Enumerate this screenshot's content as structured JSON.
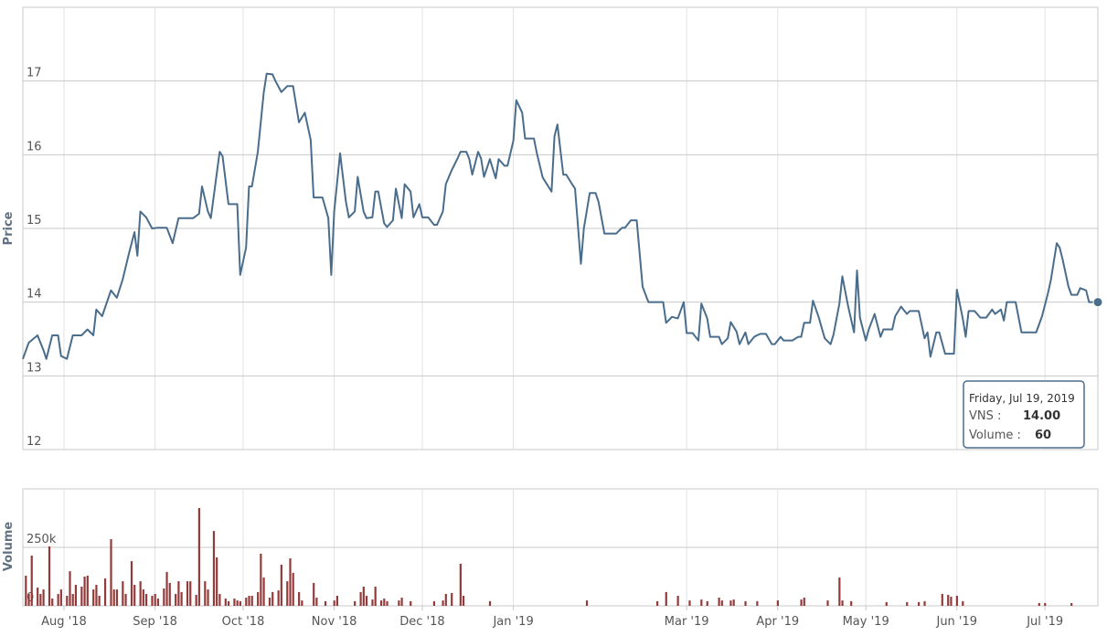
{
  "chart_data": [
    {
      "type": "line",
      "y_label": "Price",
      "color": "#4a6d8c",
      "grid": true,
      "xlim": [
        "2018-07-18",
        "2019-07-19"
      ],
      "ylim": [
        12,
        18
      ],
      "yticks": [
        12,
        13,
        14,
        15,
        16,
        17
      ],
      "x": [
        "2018-07-18",
        "2018-07-20",
        "2018-07-23",
        "2018-07-25",
        "2018-07-26",
        "2018-07-28",
        "2018-07-30",
        "2018-07-31",
        "2018-08-02",
        "2018-08-04",
        "2018-08-07",
        "2018-08-09",
        "2018-08-11",
        "2018-08-12",
        "2018-08-14",
        "2018-08-17",
        "2018-08-19",
        "2018-08-21",
        "2018-08-23",
        "2018-08-25",
        "2018-08-26",
        "2018-08-27",
        "2018-08-29",
        "2018-08-31",
        "2018-09-02",
        "2018-09-05",
        "2018-09-07",
        "2018-09-09",
        "2018-09-14",
        "2018-09-16",
        "2018-09-17",
        "2018-09-19",
        "2018-09-20",
        "2018-09-23",
        "2018-09-24",
        "2018-09-26",
        "2018-09-29",
        "2018-09-30",
        "2018-10-02",
        "2018-10-03",
        "2018-10-04",
        "2018-10-06",
        "2018-10-08",
        "2018-10-09",
        "2018-10-11",
        "2018-10-12",
        "2018-10-14",
        "2018-10-16",
        "2018-10-18",
        "2018-10-20",
        "2018-10-22",
        "2018-10-24",
        "2018-10-25",
        "2018-10-28",
        "2018-10-30",
        "2018-10-31",
        "2018-11-01",
        "2018-11-03",
        "2018-11-05",
        "2018-11-06",
        "2018-11-08",
        "2018-11-09",
        "2018-11-11",
        "2018-11-12",
        "2018-11-14",
        "2018-11-15",
        "2018-11-16",
        "2018-11-18",
        "2018-11-19",
        "2018-11-21",
        "2018-11-22",
        "2018-11-24",
        "2018-11-25",
        "2018-11-27",
        "2018-11-28",
        "2018-11-30",
        "2018-12-01",
        "2018-12-03",
        "2018-12-05",
        "2018-12-06",
        "2018-12-08",
        "2018-12-09",
        "2018-12-11",
        "2018-12-13",
        "2018-12-14",
        "2018-12-16",
        "2018-12-17",
        "2018-12-18",
        "2018-12-20",
        "2018-12-21",
        "2018-12-22",
        "2018-12-24",
        "2018-12-26",
        "2018-12-27",
        "2018-12-29",
        "2018-12-30",
        "2019-01-01",
        "2019-01-02",
        "2019-01-04",
        "2019-01-05",
        "2019-01-08",
        "2019-01-09",
        "2019-01-11",
        "2019-01-14",
        "2019-01-15",
        "2019-01-16",
        "2019-01-18",
        "2019-01-19",
        "2019-01-21",
        "2019-01-22",
        "2019-01-24",
        "2019-01-25",
        "2019-01-27",
        "2019-01-29",
        "2019-01-30",
        "2019-02-01",
        "2019-02-05",
        "2019-02-07",
        "2019-02-08",
        "2019-02-10",
        "2019-02-12",
        "2019-02-14",
        "2019-02-16",
        "2019-02-21",
        "2019-02-22",
        "2019-02-24",
        "2019-02-26",
        "2019-02-28",
        "2019-03-01",
        "2019-03-03",
        "2019-03-05",
        "2019-03-06",
        "2019-03-08",
        "2019-03-09",
        "2019-03-12",
        "2019-03-13",
        "2019-03-15",
        "2019-03-16",
        "2019-03-18",
        "2019-03-19",
        "2019-03-21",
        "2019-03-22",
        "2019-03-24",
        "2019-03-26",
        "2019-03-28",
        "2019-03-30",
        "2019-03-31",
        "2019-04-02",
        "2019-04-03",
        "2019-04-06",
        "2019-04-08",
        "2019-04-09",
        "2019-04-10",
        "2019-04-12",
        "2019-04-13",
        "2019-04-15",
        "2019-04-17",
        "2019-04-19",
        "2019-04-20",
        "2019-04-22",
        "2019-04-23",
        "2019-04-25",
        "2019-04-27",
        "2019-04-28",
        "2019-04-29",
        "2019-05-01",
        "2019-05-02",
        "2019-05-04",
        "2019-05-06",
        "2019-05-07",
        "2019-05-10",
        "2019-05-11",
        "2019-05-13",
        "2019-05-15",
        "2019-05-16",
        "2019-05-19",
        "2019-05-21",
        "2019-05-22",
        "2019-05-23",
        "2019-05-25",
        "2019-05-26",
        "2019-05-28",
        "2019-05-31",
        "2019-06-01",
        "2019-06-03",
        "2019-06-04",
        "2019-06-05",
        "2019-06-07",
        "2019-06-09",
        "2019-06-11",
        "2019-06-13",
        "2019-06-14",
        "2019-06-16",
        "2019-06-17",
        "2019-06-18",
        "2019-06-21",
        "2019-06-23",
        "2019-06-28",
        "2019-06-30",
        "2019-07-02",
        "2019-07-03",
        "2019-07-05",
        "2019-07-06",
        "2019-07-07",
        "2019-07-09",
        "2019-07-10",
        "2019-07-12",
        "2019-07-13",
        "2019-07-15",
        "2019-07-16",
        "2019-07-19"
      ],
      "values": [
        13.23,
        13.45,
        13.55,
        13.35,
        13.23,
        13.55,
        13.55,
        13.27,
        13.23,
        13.55,
        13.55,
        13.63,
        13.55,
        13.9,
        13.81,
        14.16,
        14.06,
        14.31,
        14.64,
        14.95,
        14.63,
        15.23,
        15.15,
        15.0,
        15.01,
        15.01,
        14.8,
        15.14,
        15.14,
        15.2,
        15.57,
        15.23,
        15.14,
        16.04,
        15.98,
        15.33,
        15.33,
        14.37,
        14.74,
        15.57,
        15.57,
        16.04,
        16.84,
        17.1,
        17.09,
        17.0,
        16.85,
        16.93,
        16.93,
        16.44,
        16.57,
        16.2,
        15.42,
        15.42,
        15.14,
        14.37,
        15.23,
        16.02,
        15.36,
        15.15,
        15.23,
        15.7,
        15.23,
        15.14,
        15.15,
        15.5,
        15.5,
        15.07,
        15.02,
        15.11,
        15.54,
        15.14,
        15.6,
        15.5,
        15.15,
        15.33,
        15.15,
        15.15,
        15.05,
        15.05,
        15.23,
        15.6,
        15.79,
        15.95,
        16.04,
        16.04,
        15.94,
        15.73,
        16.04,
        15.95,
        15.7,
        15.94,
        15.68,
        15.94,
        15.85,
        15.85,
        16.19,
        16.74,
        16.57,
        16.22,
        16.22,
        16.02,
        15.69,
        15.5,
        16.25,
        16.41,
        15.73,
        15.73,
        15.6,
        15.54,
        14.52,
        15.0,
        15.48,
        15.48,
        15.36,
        14.93,
        14.93,
        15.01,
        15.01,
        15.11,
        15.11,
        14.21,
        14.0,
        14.0,
        13.72,
        13.8,
        13.78,
        14.0,
        13.58,
        13.58,
        13.48,
        13.98,
        13.78,
        13.53,
        13.53,
        13.43,
        13.51,
        13.73,
        13.6,
        13.43,
        13.59,
        13.43,
        13.53,
        13.57,
        13.57,
        13.43,
        13.43,
        13.53,
        13.48,
        13.48,
        13.53,
        13.53,
        13.72,
        13.72,
        14.02,
        13.79,
        13.51,
        13.43,
        13.56,
        13.98,
        14.35,
        13.94,
        13.59,
        14.43,
        13.79,
        13.48,
        13.63,
        13.84,
        13.53,
        13.63,
        13.63,
        13.81,
        13.94,
        13.84,
        13.88,
        13.88,
        13.51,
        13.59,
        13.26,
        13.59,
        13.59,
        13.3,
        13.3,
        14.17,
        13.78,
        13.53,
        13.88,
        13.88,
        13.79,
        13.79,
        13.9,
        13.84,
        13.9,
        13.75,
        14.0,
        14.0,
        13.59,
        13.59,
        13.81,
        14.12,
        14.3,
        14.8,
        14.74,
        14.58,
        14.21,
        14.1,
        14.1,
        14.19,
        14.16,
        14.0,
        14.0
      ]
    },
    {
      "type": "bar",
      "y_label": "Volume",
      "color": "#933b3b",
      "grid": true,
      "xlim": [
        "2018-07-18",
        "2019-07-19"
      ],
      "ylim": [
        0,
        500000
      ],
      "yticks": [
        0,
        {
          "value": 250000,
          "label": "250k"
        }
      ],
      "xticks": [
        {
          "value": "2018-08-01",
          "label": "Aug '18"
        },
        {
          "value": "2018-09-01",
          "label": "Sep '18"
        },
        {
          "value": "2018-10-01",
          "label": "Oct '18"
        },
        {
          "value": "2018-11-01",
          "label": "Nov '18"
        },
        {
          "value": "2018-12-01",
          "label": "Dec '18"
        },
        {
          "value": "2019-01-01",
          "label": "Jan '19"
        },
        {
          "value": "2019-03-01",
          "label": "Mar '19"
        },
        {
          "value": "2019-04-01",
          "label": "Apr '19"
        },
        {
          "value": "2019-05-01",
          "label": "May '19"
        },
        {
          "value": "2019-06-01",
          "label": "Jun '19"
        },
        {
          "value": "2019-07-01",
          "label": "Jul '19"
        }
      ],
      "x": [
        "2018-07-19",
        "2018-07-20",
        "2018-07-21",
        "2018-07-23",
        "2018-07-24",
        "2018-07-25",
        "2018-07-27",
        "2018-07-28",
        "2018-07-30",
        "2018-07-31",
        "2018-08-02",
        "2018-08-03",
        "2018-08-04",
        "2018-08-05",
        "2018-08-07",
        "2018-08-08",
        "2018-08-09",
        "2018-08-11",
        "2018-08-12",
        "2018-08-13",
        "2018-08-15",
        "2018-08-17",
        "2018-08-18",
        "2018-08-19",
        "2018-08-21",
        "2018-08-22",
        "2018-08-24",
        "2018-08-25",
        "2018-08-27",
        "2018-08-28",
        "2018-08-29",
        "2018-08-31",
        "2018-09-01",
        "2018-09-02",
        "2018-09-04",
        "2018-09-05",
        "2018-09-06",
        "2018-09-08",
        "2018-09-09",
        "2018-09-10",
        "2018-09-12",
        "2018-09-13",
        "2018-09-15",
        "2018-09-16",
        "2018-09-18",
        "2018-09-19",
        "2018-09-21",
        "2018-09-22",
        "2018-09-23",
        "2018-09-25",
        "2018-09-26",
        "2018-09-28",
        "2018-09-29",
        "2018-09-30",
        "2018-10-02",
        "2018-10-03",
        "2018-10-04",
        "2018-10-06",
        "2018-10-07",
        "2018-10-08",
        "2018-10-10",
        "2018-10-11",
        "2018-10-13",
        "2018-10-14",
        "2018-10-16",
        "2018-10-17",
        "2018-10-18",
        "2018-10-20",
        "2018-10-21",
        "2018-10-25",
        "2018-10-26",
        "2018-10-29",
        "2018-11-01",
        "2018-11-02",
        "2018-11-08",
        "2018-11-10",
        "2018-11-11",
        "2018-11-12",
        "2018-11-14",
        "2018-11-15",
        "2018-11-17",
        "2018-11-18",
        "2018-11-19",
        "2018-11-23",
        "2018-11-24",
        "2018-11-27",
        "2018-12-05",
        "2018-12-08",
        "2018-12-09",
        "2018-12-11",
        "2018-12-14",
        "2018-12-15",
        "2018-12-24",
        "2019-01-26",
        "2019-02-19",
        "2019-02-22",
        "2019-02-26",
        "2019-03-02",
        "2019-03-06",
        "2019-03-08",
        "2019-03-12",
        "2019-03-13",
        "2019-03-16",
        "2019-03-17",
        "2019-03-21",
        "2019-03-25",
        "2019-04-01",
        "2019-04-09",
        "2019-04-10",
        "2019-04-18",
        "2019-04-22",
        "2019-04-23",
        "2019-04-26",
        "2019-05-08",
        "2019-05-15",
        "2019-05-19",
        "2019-05-21",
        "2019-05-27",
        "2019-05-29",
        "2019-05-30",
        "2019-06-01",
        "2019-06-03",
        "2019-06-29",
        "2019-07-01",
        "2019-07-10",
        "2019-07-19"
      ],
      "values": [
        129000,
        51000,
        215000,
        78000,
        51000,
        70000,
        254000,
        31000,
        51000,
        70000,
        43000,
        148000,
        51000,
        90000,
        82000,
        125000,
        129000,
        70000,
        90000,
        43000,
        117000,
        285000,
        70000,
        70000,
        105000,
        51000,
        191000,
        90000,
        105000,
        70000,
        51000,
        43000,
        51000,
        31000,
        74000,
        145000,
        98000,
        51000,
        105000,
        59000,
        105000,
        105000,
        47000,
        418000,
        105000,
        70000,
        320000,
        207000,
        51000,
        31000,
        20000,
        31000,
        23000,
        20000,
        35000,
        43000,
        43000,
        59000,
        223000,
        121000,
        35000,
        59000,
        66000,
        176000,
        105000,
        203000,
        141000,
        59000,
        23000,
        98000,
        35000,
        20000,
        23000,
        43000,
        20000,
        59000,
        82000,
        43000,
        27000,
        82000,
        23000,
        31000,
        20000,
        23000,
        35000,
        20000,
        20000,
        23000,
        51000,
        55000,
        180000,
        43000,
        20000,
        23000,
        20000,
        59000,
        43000,
        23000,
        27000,
        20000,
        35000,
        23000,
        23000,
        27000,
        20000,
        20000,
        23000,
        27000,
        35000,
        23000,
        121000,
        23000,
        20000,
        16000,
        16000,
        16000,
        20000,
        51000,
        47000,
        39000,
        43000,
        20000,
        12000,
        12000,
        12000,
        60
      ]
    }
  ],
  "tooltip": {
    "title": "Friday, Jul 19, 2019",
    "rows": [
      {
        "label": "VNS :",
        "value": "14.00"
      },
      {
        "label": "Volume :",
        "value": 60
      }
    ]
  }
}
